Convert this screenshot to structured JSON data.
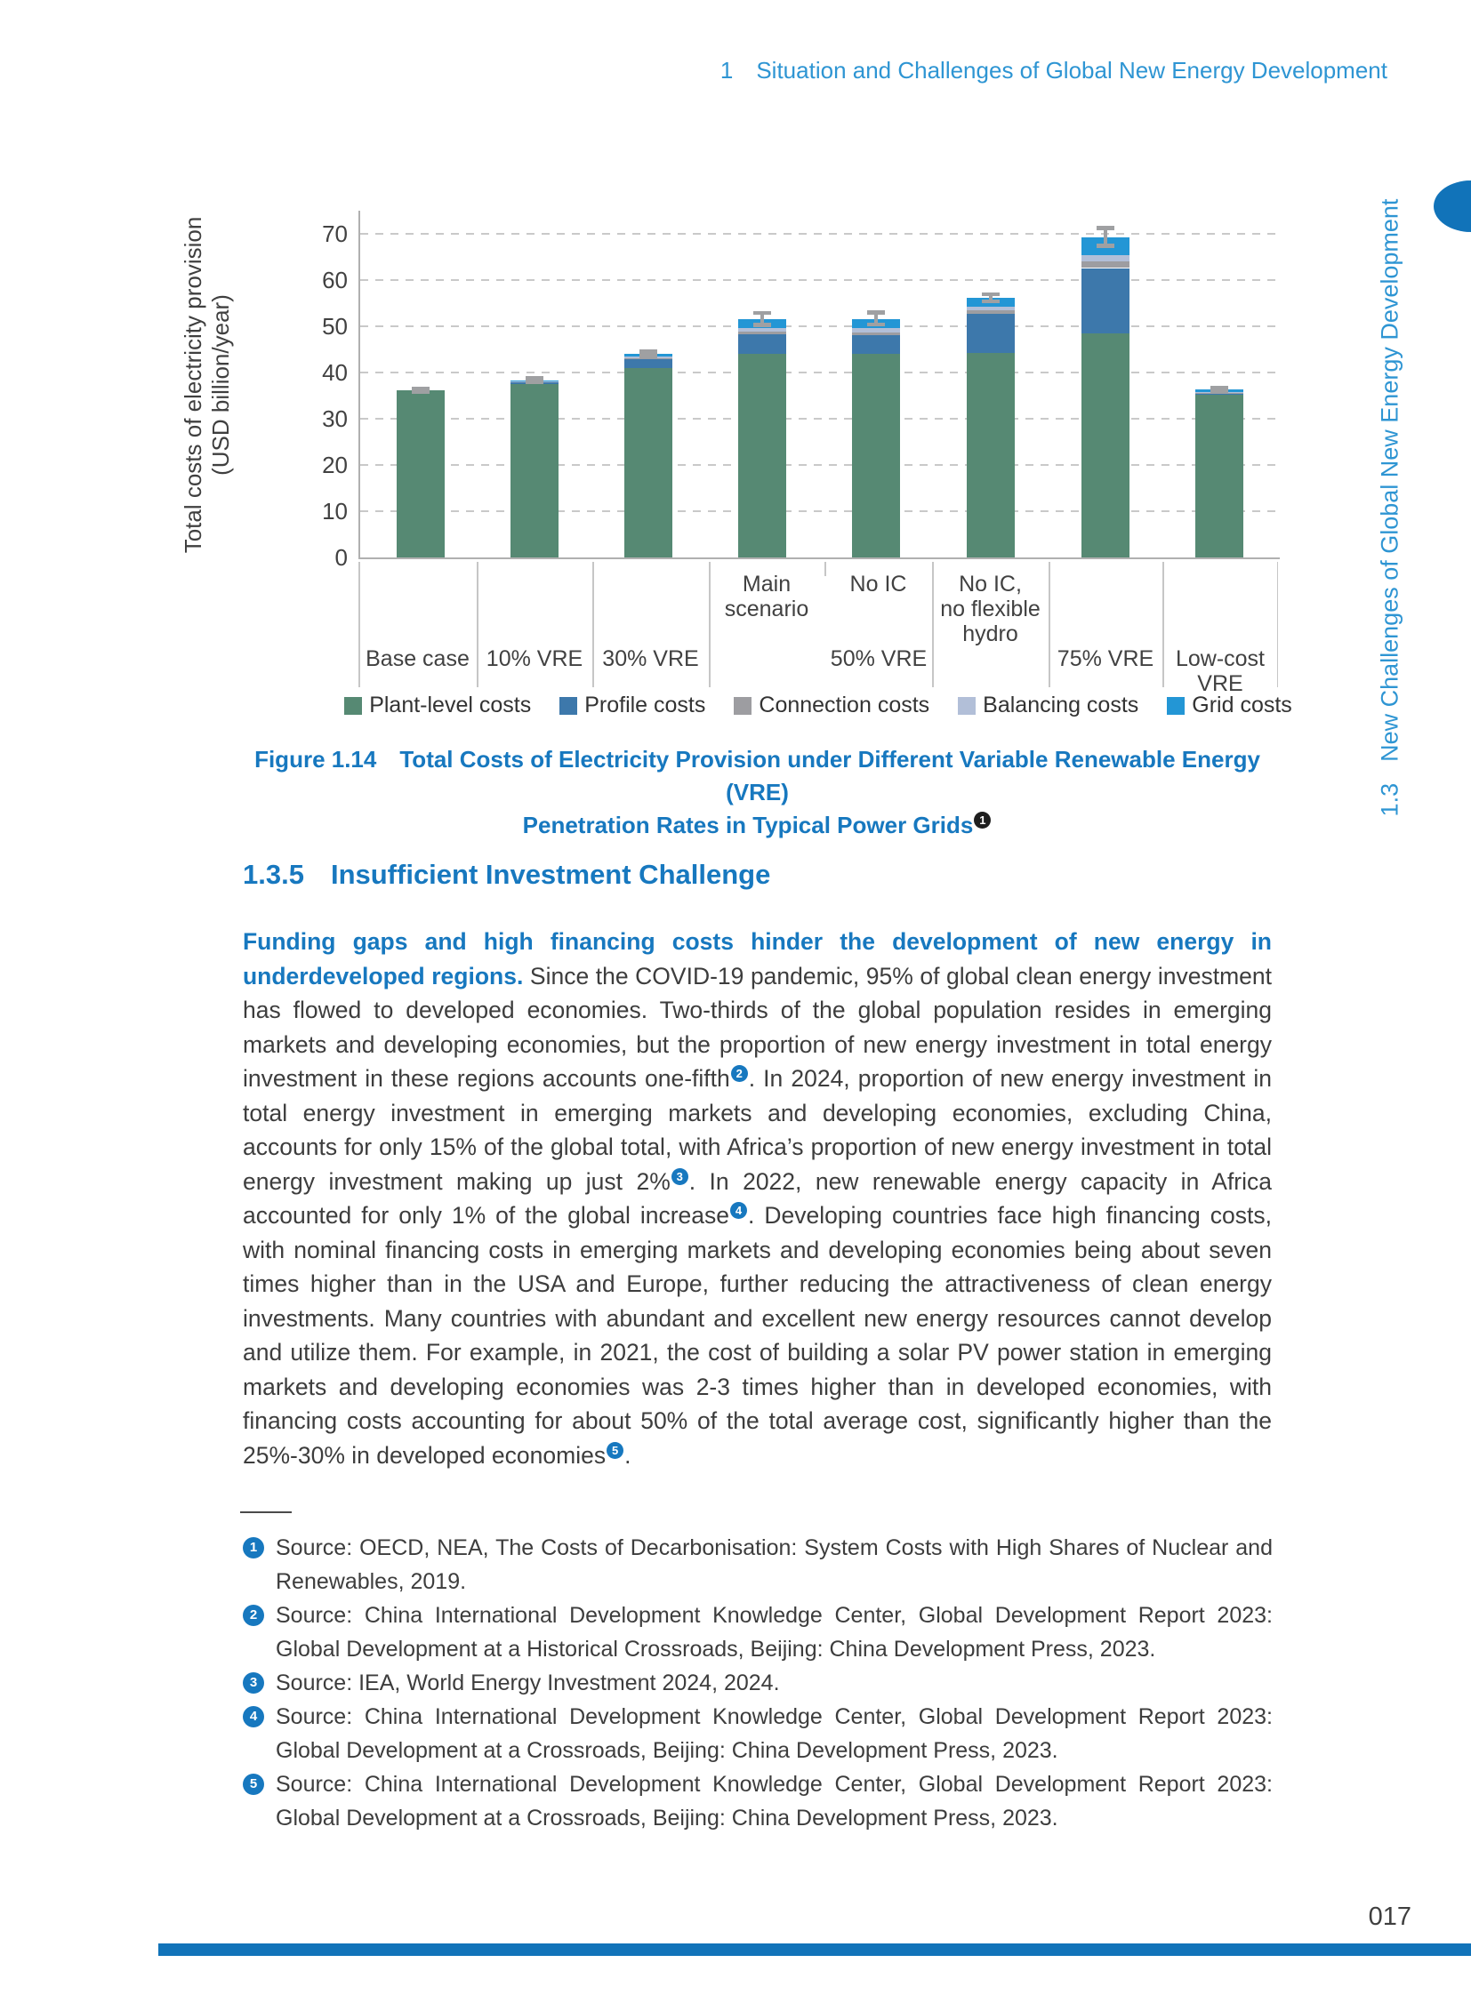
{
  "header": {
    "chapter_no": "1",
    "chapter_title": "Situation and Challenges of Global New Energy Development"
  },
  "sidebar": {
    "section_no": "1.3",
    "title": "New Challenges of Global New Energy Development",
    "accent_color": "#1173b9"
  },
  "chart_data": {
    "type": "bar",
    "stacked": true,
    "ylabel_line1": "Total costs of electricity provision",
    "ylabel_line2": "(USD billion/year)",
    "ylim": [
      0,
      75
    ],
    "yticks": [
      0,
      10,
      20,
      30,
      40,
      50,
      60,
      70
    ],
    "grid": "dashed-horizontal",
    "legend_position": "bottom",
    "colors": {
      "plant": "#568973",
      "profile": "#3d78ab",
      "connection": "#9d9da1",
      "balancing": "#b2bfd8",
      "grid": "#2396d5",
      "error": "#9fa0a2"
    },
    "legend": [
      {
        "key": "plant",
        "label": "Plant-level costs"
      },
      {
        "key": "profile",
        "label": "Profile costs"
      },
      {
        "key": "connection",
        "label": "Connection costs"
      },
      {
        "key": "balancing",
        "label": "Balancing costs"
      },
      {
        "key": "grid",
        "label": "Grid costs"
      }
    ],
    "group_labels": [
      "Base case",
      "10% VRE",
      "30% VRE",
      "50% VRE",
      "75% VRE",
      "Low-cost\nVRE"
    ],
    "sub_labels": [
      "Main\nscenario",
      "No IC",
      "No IC,\nno flexible\nhydro"
    ],
    "bars": [
      {
        "name": "Base case",
        "segments": {
          "plant": 36.1,
          "profile": 0,
          "connection": 0,
          "balancing": 0,
          "grid": 0
        },
        "total": 36.1,
        "err": 0.4
      },
      {
        "name": "10% VRE",
        "segments": {
          "plant": 37.5,
          "profile": 0.3,
          "connection": 0.1,
          "balancing": 0.1,
          "grid": 0.3
        },
        "total": 38.3,
        "err": 0.4
      },
      {
        "name": "30% VRE",
        "segments": {
          "plant": 41.0,
          "profile": 1.8,
          "connection": 0.3,
          "balancing": 0.3,
          "grid": 0.6
        },
        "total": 44.0,
        "err": 0.5
      },
      {
        "name": "50% VRE - Main scenario",
        "segments": {
          "plant": 44.0,
          "profile": 4.2,
          "connection": 0.6,
          "balancing": 0.8,
          "grid": 1.9
        },
        "total": 51.5,
        "err": 1.3
      },
      {
        "name": "50% VRE - No IC",
        "segments": {
          "plant": 44.0,
          "profile": 4.0,
          "connection": 0.7,
          "balancing": 0.9,
          "grid": 2.0
        },
        "total": 51.6,
        "err": 1.3
      },
      {
        "name": "50% VRE - No IC, no flexible hydro",
        "segments": {
          "plant": 44.3,
          "profile": 8.3,
          "connection": 0.8,
          "balancing": 0.8,
          "grid": 1.9
        },
        "total": 56.1,
        "err": 0.8
      },
      {
        "name": "75% VRE",
        "segments": {
          "plant": 48.5,
          "profile": 14.1,
          "connection": 1.5,
          "balancing": 1.3,
          "grid": 3.9
        },
        "total": 69.3,
        "err": 1.9
      },
      {
        "name": "Low-cost VRE",
        "segments": {
          "plant": 35.1,
          "profile": 0.2,
          "connection": 0.2,
          "balancing": 0.2,
          "grid": 0.6
        },
        "total": 36.3,
        "err": 0.3
      }
    ]
  },
  "caption": {
    "figure_label": "Figure 1.14",
    "line1": "Total Costs of Electricity Provision under Different Variable Renewable Energy (VRE)",
    "line2": "Penetration Rates in Typical Power Grids",
    "ref": "1"
  },
  "section": {
    "number": "1.3.5",
    "title": "Insufficient Investment Challenge"
  },
  "paragraph": {
    "runs": [
      {
        "style": "bold-blue",
        "text": "Funding gaps and high financing costs hinder the development of new energy in underdeveloped regions. "
      },
      {
        "style": "normal",
        "text": "Since the COVID-19 pandemic, 95% of global clean energy investment has flowed to developed economies. Two-thirds of the global population resides in emerging markets and developing economies, but the proportion of new energy investment in total energy investment in these regions accounts one-fifth"
      },
      {
        "style": "sup",
        "text": "2"
      },
      {
        "style": "normal",
        "text": ". In 2024, proportion of new energy investment in total energy investment in emerging markets and developing economies, excluding China, accounts for only 15% of the global total, with Africa’s proportion of new energy investment in total energy investment making up just 2%"
      },
      {
        "style": "sup",
        "text": "3"
      },
      {
        "style": "normal",
        "text": ". In 2022, new renewable energy capacity in Africa accounted for only 1% of the global increase"
      },
      {
        "style": "sup",
        "text": "4"
      },
      {
        "style": "normal",
        "text": ". Developing countries face high financing costs, with nominal financing costs in emerging markets and developing economies being about seven times higher than in the USA and Europe, further reducing the attractiveness of clean energy investments. Many countries with abundant and excellent new energy resources cannot develop and utilize them. For example, in 2021, the cost of building a solar PV power station in emerging markets and developing economies was 2-3 times higher than in developed economies, with financing costs accounting for about 50% of the total average cost, significantly higher than the 25%-30% in developed economies"
      },
      {
        "style": "sup",
        "text": "5"
      },
      {
        "style": "normal",
        "text": "."
      }
    ]
  },
  "footnotes": [
    {
      "num": "1",
      "text": "Source: OECD, NEA, The Costs of Decarbonisation: System Costs with High Shares of Nuclear and Renewables, 2019."
    },
    {
      "num": "2",
      "text": "Source: China International Development Knowledge Center, Global Development Report 2023: Global Development at a Historical Crossroads, Beijing: China Development Press, 2023."
    },
    {
      "num": "3",
      "text": "Source: IEA, World Energy Investment 2024, 2024."
    },
    {
      "num": "4",
      "text": "Source: China International Development Knowledge Center, Global Development Report 2023: Global Development at a Crossroads, Beijing: China Development Press, 2023."
    },
    {
      "num": "5",
      "text": "Source: China International Development Knowledge Center, Global Development Report 2023: Global Development at a Crossroads, Beijing: China Development Press, 2023."
    }
  ],
  "footer": {
    "page_number": "017"
  }
}
